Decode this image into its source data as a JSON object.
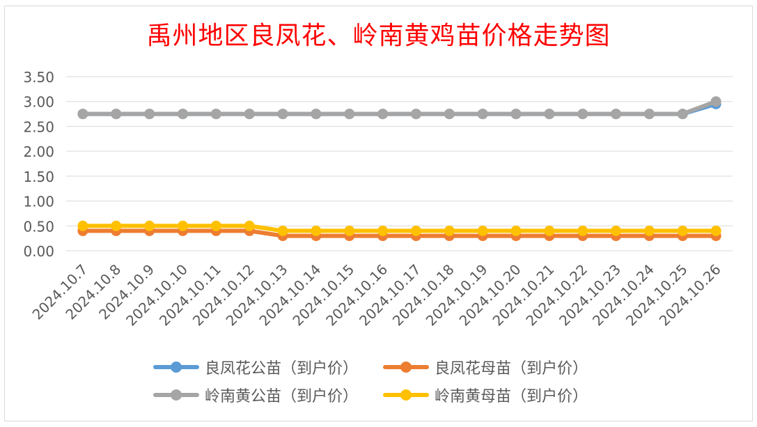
{
  "chart_data": {
    "type": "line",
    "title": "禹州地区良凤花、岭南黄鸡苗价格走势图",
    "categories": [
      "2024.10.7",
      "2024.10.8",
      "2024.10.9",
      "2024.10.10",
      "2024.10.11",
      "2024.10.12",
      "2024.10.13",
      "2024.10.14",
      "2024.10.15",
      "2024.10.16",
      "2024.10.17",
      "2024.10.18",
      "2024.10.19",
      "2024.10.20",
      "2024.10.21",
      "2024.10.22",
      "2024.10.23",
      "2024.10.24",
      "2024.10.25",
      "2024.10.26"
    ],
    "ylim": [
      0,
      3.5
    ],
    "yticks": [
      "0.00",
      "0.50",
      "1.00",
      "1.50",
      "2.00",
      "2.50",
      "3.00",
      "3.50"
    ],
    "grid": true,
    "legend_position": "bottom",
    "series": [
      {
        "name": "良凤花公苗（到户价）",
        "color": "#5b9bd5",
        "values": [
          2.75,
          2.75,
          2.75,
          2.75,
          2.75,
          2.75,
          2.75,
          2.75,
          2.75,
          2.75,
          2.75,
          2.75,
          2.75,
          2.75,
          2.75,
          2.75,
          2.75,
          2.75,
          2.75,
          2.95
        ]
      },
      {
        "name": "良凤花母苗（到户价）",
        "color": "#ed7d31",
        "values": [
          0.4,
          0.4,
          0.4,
          0.4,
          0.4,
          0.4,
          0.3,
          0.3,
          0.3,
          0.3,
          0.3,
          0.3,
          0.3,
          0.3,
          0.3,
          0.3,
          0.3,
          0.3,
          0.3,
          0.3
        ]
      },
      {
        "name": "岭南黄公苗（到户价）",
        "color": "#a5a5a5",
        "values": [
          2.75,
          2.75,
          2.75,
          2.75,
          2.75,
          2.75,
          2.75,
          2.75,
          2.75,
          2.75,
          2.75,
          2.75,
          2.75,
          2.75,
          2.75,
          2.75,
          2.75,
          2.75,
          2.75,
          3.0
        ]
      },
      {
        "name": "岭南黄母苗（到户价）",
        "color": "#ffc000",
        "values": [
          0.5,
          0.5,
          0.5,
          0.5,
          0.5,
          0.5,
          0.4,
          0.4,
          0.4,
          0.4,
          0.4,
          0.4,
          0.4,
          0.4,
          0.4,
          0.4,
          0.4,
          0.4,
          0.4,
          0.4
        ]
      }
    ]
  }
}
